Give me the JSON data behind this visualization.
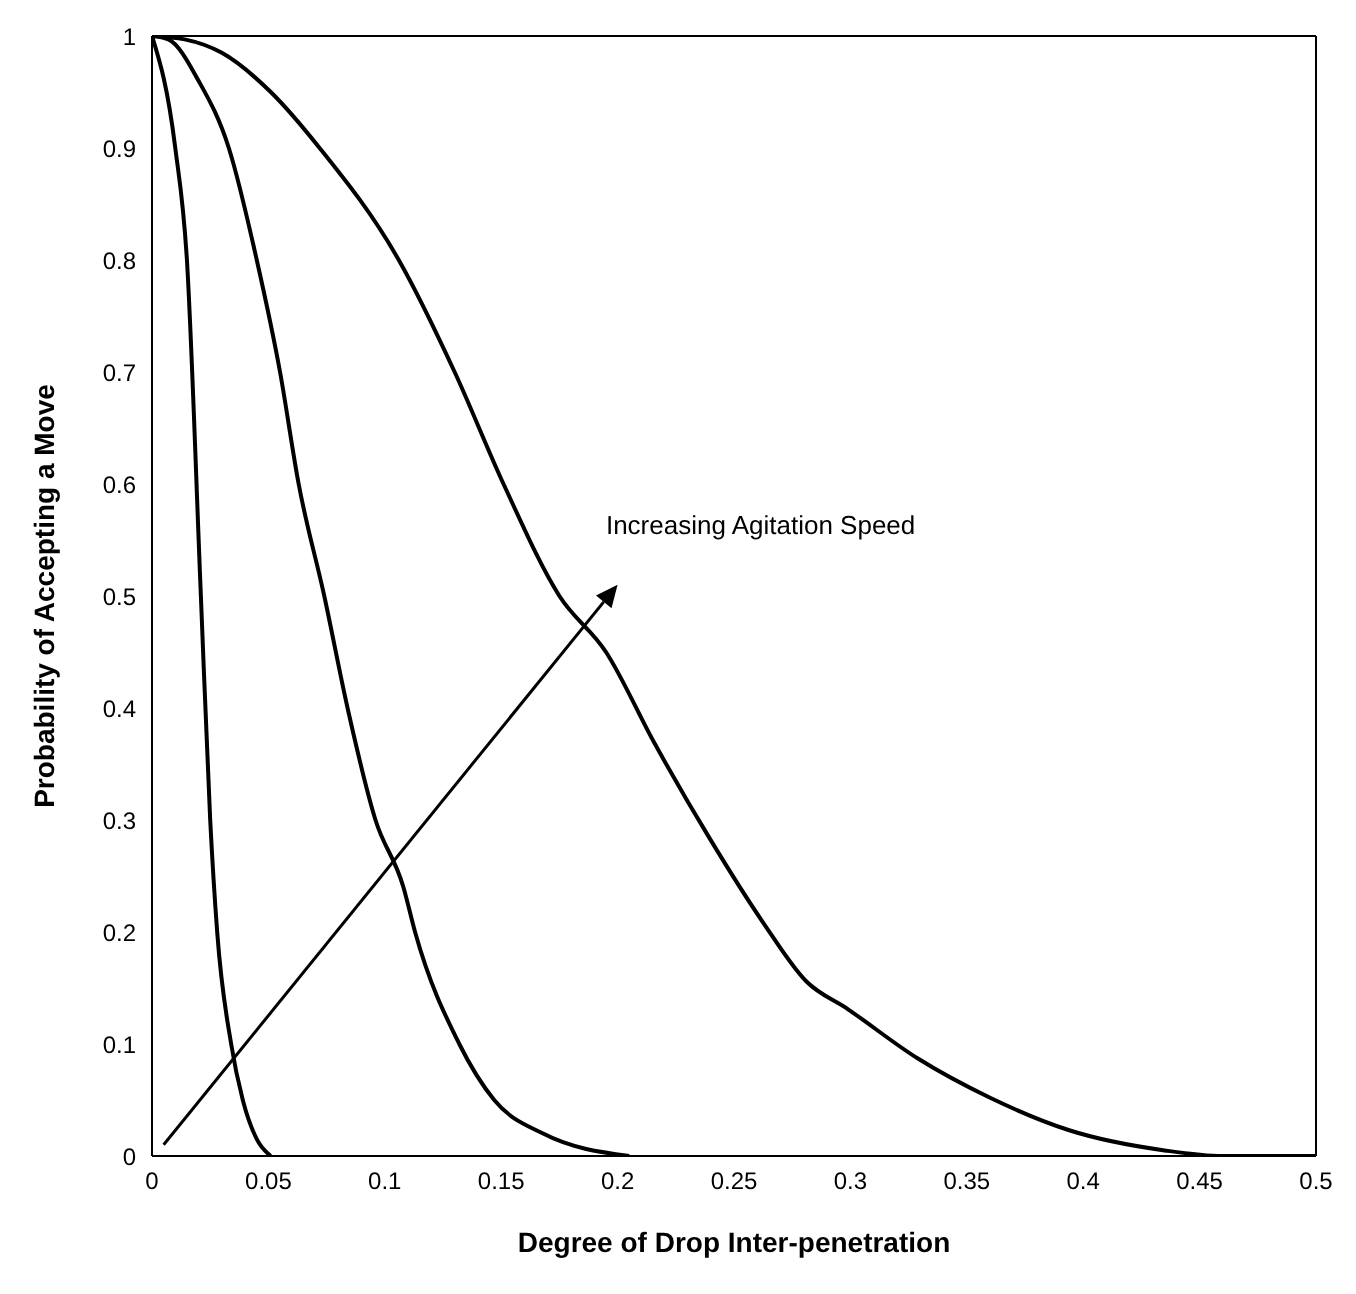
{
  "chart_data": {
    "type": "line",
    "xlabel": "Degree of Drop Inter-penetration",
    "ylabel": "Probability of Accepting a Move",
    "annotations": [
      "Increasing Agitation Speed"
    ],
    "xlim": [
      0,
      0.5
    ],
    "ylim": [
      0,
      1
    ],
    "xticks": [
      0,
      0.05,
      0.1,
      0.15,
      0.2,
      0.25,
      0.3,
      0.35,
      0.4,
      0.45,
      0.5
    ],
    "yticks": [
      0,
      0.1,
      0.2,
      0.3,
      0.4,
      0.5,
      0.6,
      0.7,
      0.8,
      0.9,
      1
    ],
    "marker": "none",
    "line_style": "solid",
    "series": [
      {
        "color": "#000000",
        "x": [
          0,
          0.01,
          0.015,
          0.021,
          0.025,
          0.028,
          0.034,
          0.039,
          0.045,
          0.051
        ],
        "values": [
          1,
          0.9,
          0.8,
          0.5,
          0.3,
          0.2,
          0.1,
          0.05,
          0.015,
          0
        ]
      },
      {
        "color": "#000000",
        "x": [
          0,
          0.007,
          0.02,
          0.033,
          0.045,
          0.055,
          0.063,
          0.074,
          0.084,
          0.096,
          0.108,
          0.113,
          0.132,
          0.147,
          0.168,
          0.205
        ],
        "values": [
          1,
          0.997,
          0.96,
          0.9,
          0.8,
          0.7,
          0.6,
          0.5,
          0.4,
          0.3,
          0.24,
          0.2,
          0.1,
          0.05,
          0.02,
          0
        ]
      },
      {
        "color": "#000000",
        "x": [
          0,
          0.014,
          0.03,
          0.051,
          0.072,
          0.106,
          0.13,
          0.151,
          0.175,
          0.195,
          0.216,
          0.24,
          0.262,
          0.281,
          0.299,
          0.329,
          0.36,
          0.394,
          0.435,
          0.46,
          0.5
        ],
        "values": [
          1,
          0.997,
          0.985,
          0.95,
          0.9,
          0.8,
          0.7,
          0.6,
          0.5,
          0.45,
          0.368,
          0.282,
          0.21,
          0.156,
          0.131,
          0.087,
          0.052,
          0.023,
          0.005,
          0,
          0
        ]
      }
    ]
  }
}
